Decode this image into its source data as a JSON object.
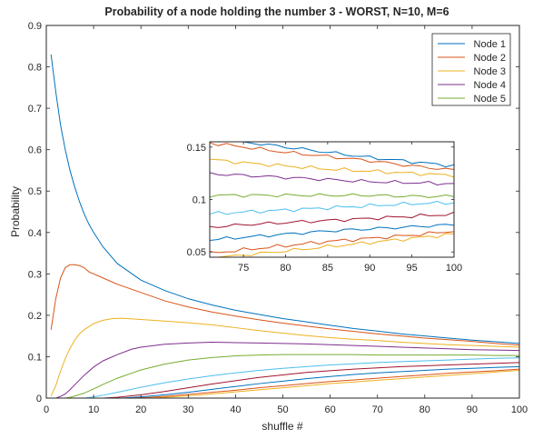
{
  "chart_data": {
    "type": "line",
    "title": "Probability of a node holding the number 3 - WORST, N=10, M=6",
    "xlabel": "shuffle #",
    "ylabel": "Probability",
    "xlim": [
      0,
      100
    ],
    "ylim": [
      0,
      0.9
    ],
    "xticks": [
      0,
      10,
      20,
      30,
      40,
      50,
      60,
      70,
      80,
      90,
      100
    ],
    "yticks": [
      0,
      0.1,
      0.2,
      0.3,
      0.4,
      0.5,
      0.6,
      0.7,
      0.8,
      0.9
    ],
    "grid": false,
    "legend_position": "top-right",
    "series": [
      {
        "name": "Node 1",
        "color": "#0072bd",
        "points": [
          [
            1,
            0.83
          ],
          [
            2,
            0.74
          ],
          [
            3,
            0.66
          ],
          [
            4,
            0.6
          ],
          [
            5,
            0.55
          ],
          [
            6,
            0.51
          ],
          [
            7,
            0.475
          ],
          [
            8,
            0.445
          ],
          [
            9,
            0.42
          ],
          [
            10,
            0.4
          ],
          [
            12,
            0.365
          ],
          [
            15,
            0.325
          ],
          [
            20,
            0.285
          ],
          [
            25,
            0.26
          ],
          [
            30,
            0.24
          ],
          [
            35,
            0.225
          ],
          [
            40,
            0.212
          ],
          [
            45,
            0.202
          ],
          [
            50,
            0.192
          ],
          [
            55,
            0.184
          ],
          [
            60,
            0.176
          ],
          [
            65,
            0.168
          ],
          [
            70,
            0.162
          ],
          [
            75,
            0.155
          ],
          [
            80,
            0.15
          ],
          [
            85,
            0.145
          ],
          [
            90,
            0.14
          ],
          [
            95,
            0.136
          ],
          [
            100,
            0.132
          ]
        ]
      },
      {
        "name": "Node 2",
        "color": "#d95319",
        "points": [
          [
            1,
            0.165
          ],
          [
            2,
            0.24
          ],
          [
            3,
            0.29
          ],
          [
            4,
            0.315
          ],
          [
            5,
            0.322
          ],
          [
            6,
            0.322
          ],
          [
            7,
            0.32
          ],
          [
            8,
            0.315
          ],
          [
            9,
            0.305
          ],
          [
            10,
            0.3
          ],
          [
            12,
            0.29
          ],
          [
            15,
            0.275
          ],
          [
            20,
            0.255
          ],
          [
            25,
            0.235
          ],
          [
            30,
            0.22
          ],
          [
            35,
            0.208
          ],
          [
            40,
            0.198
          ],
          [
            45,
            0.189
          ],
          [
            50,
            0.181
          ],
          [
            55,
            0.174
          ],
          [
            60,
            0.167
          ],
          [
            65,
            0.161
          ],
          [
            70,
            0.155
          ],
          [
            75,
            0.15
          ],
          [
            80,
            0.145
          ],
          [
            85,
            0.141
          ],
          [
            90,
            0.137
          ],
          [
            95,
            0.132
          ],
          [
            100,
            0.128
          ]
        ]
      },
      {
        "name": "Node 3",
        "color": "#edb120",
        "points": [
          [
            1,
            0.005
          ],
          [
            2,
            0.03
          ],
          [
            3,
            0.065
          ],
          [
            4,
            0.095
          ],
          [
            5,
            0.12
          ],
          [
            6,
            0.14
          ],
          [
            7,
            0.155
          ],
          [
            8,
            0.165
          ],
          [
            10,
            0.18
          ],
          [
            12,
            0.188
          ],
          [
            14,
            0.192
          ],
          [
            16,
            0.193
          ],
          [
            20,
            0.19
          ],
          [
            25,
            0.186
          ],
          [
            30,
            0.182
          ],
          [
            35,
            0.177
          ],
          [
            40,
            0.17
          ],
          [
            45,
            0.163
          ],
          [
            50,
            0.157
          ],
          [
            55,
            0.151
          ],
          [
            60,
            0.146
          ],
          [
            65,
            0.142
          ],
          [
            70,
            0.139
          ],
          [
            75,
            0.135
          ],
          [
            80,
            0.132
          ],
          [
            85,
            0.129
          ],
          [
            90,
            0.127
          ],
          [
            95,
            0.125
          ],
          [
            100,
            0.123
          ]
        ]
      },
      {
        "name": "Node 4",
        "color": "#7e2f8e",
        "points": [
          [
            2,
            0.0
          ],
          [
            3,
            0.004
          ],
          [
            4,
            0.01
          ],
          [
            5,
            0.02
          ],
          [
            6,
            0.032
          ],
          [
            8,
            0.055
          ],
          [
            10,
            0.075
          ],
          [
            12,
            0.09
          ],
          [
            15,
            0.105
          ],
          [
            18,
            0.118
          ],
          [
            20,
            0.123
          ],
          [
            25,
            0.13
          ],
          [
            30,
            0.133
          ],
          [
            35,
            0.135
          ],
          [
            40,
            0.134
          ],
          [
            45,
            0.133
          ],
          [
            50,
            0.132
          ],
          [
            55,
            0.131
          ],
          [
            60,
            0.129
          ],
          [
            65,
            0.127
          ],
          [
            70,
            0.125
          ],
          [
            75,
            0.123
          ],
          [
            80,
            0.121
          ],
          [
            85,
            0.119
          ],
          [
            90,
            0.117
          ],
          [
            95,
            0.116
          ],
          [
            100,
            0.115
          ]
        ]
      },
      {
        "name": "Node 5",
        "color": "#77ac30",
        "points": [
          [
            4,
            0.0
          ],
          [
            5,
            0.002
          ],
          [
            6,
            0.005
          ],
          [
            8,
            0.012
          ],
          [
            10,
            0.022
          ],
          [
            12,
            0.033
          ],
          [
            15,
            0.048
          ],
          [
            18,
            0.06
          ],
          [
            20,
            0.068
          ],
          [
            25,
            0.082
          ],
          [
            30,
            0.092
          ],
          [
            35,
            0.098
          ],
          [
            40,
            0.102
          ],
          [
            45,
            0.104
          ],
          [
            50,
            0.105
          ],
          [
            55,
            0.105
          ],
          [
            60,
            0.105
          ],
          [
            65,
            0.105
          ],
          [
            70,
            0.104
          ],
          [
            75,
            0.104
          ],
          [
            80,
            0.104
          ],
          [
            85,
            0.104
          ],
          [
            90,
            0.104
          ],
          [
            95,
            0.103
          ],
          [
            100,
            0.103
          ]
        ]
      },
      {
        "color": "#4dbeee",
        "points": [
          [
            8,
            0.0
          ],
          [
            10,
            0.003
          ],
          [
            12,
            0.007
          ],
          [
            15,
            0.014
          ],
          [
            20,
            0.026
          ],
          [
            25,
            0.037
          ],
          [
            30,
            0.046
          ],
          [
            35,
            0.054
          ],
          [
            40,
            0.061
          ],
          [
            45,
            0.067
          ],
          [
            50,
            0.072
          ],
          [
            55,
            0.076
          ],
          [
            60,
            0.08
          ],
          [
            65,
            0.083
          ],
          [
            70,
            0.086
          ],
          [
            75,
            0.088
          ],
          [
            80,
            0.09
          ],
          [
            85,
            0.092
          ],
          [
            90,
            0.094
          ],
          [
            95,
            0.096
          ],
          [
            100,
            0.097
          ]
        ]
      },
      {
        "color": "#a2142f",
        "points": [
          [
            12,
            0.0
          ],
          [
            15,
            0.002
          ],
          [
            20,
            0.008
          ],
          [
            25,
            0.016
          ],
          [
            30,
            0.025
          ],
          [
            35,
            0.034
          ],
          [
            40,
            0.042
          ],
          [
            45,
            0.05
          ],
          [
            50,
            0.056
          ],
          [
            55,
            0.062
          ],
          [
            60,
            0.066
          ],
          [
            65,
            0.07
          ],
          [
            70,
            0.073
          ],
          [
            75,
            0.076
          ],
          [
            80,
            0.078
          ],
          [
            85,
            0.08
          ],
          [
            90,
            0.082
          ],
          [
            95,
            0.084
          ],
          [
            100,
            0.086
          ]
        ]
      },
      {
        "color": "#0072bd",
        "points": [
          [
            16,
            0.0
          ],
          [
            20,
            0.003
          ],
          [
            25,
            0.008
          ],
          [
            30,
            0.014
          ],
          [
            35,
            0.021
          ],
          [
            40,
            0.028
          ],
          [
            45,
            0.035
          ],
          [
            50,
            0.041
          ],
          [
            55,
            0.047
          ],
          [
            60,
            0.052
          ],
          [
            65,
            0.057
          ],
          [
            70,
            0.061
          ],
          [
            75,
            0.064
          ],
          [
            80,
            0.067
          ],
          [
            85,
            0.07
          ],
          [
            90,
            0.072
          ],
          [
            95,
            0.074
          ],
          [
            100,
            0.076
          ]
        ]
      },
      {
        "color": "#d95319",
        "points": [
          [
            18,
            0.0
          ],
          [
            22,
            0.002
          ],
          [
            26,
            0.005
          ],
          [
            30,
            0.009
          ],
          [
            35,
            0.014
          ],
          [
            40,
            0.019
          ],
          [
            45,
            0.025
          ],
          [
            50,
            0.03
          ],
          [
            55,
            0.035
          ],
          [
            60,
            0.04
          ],
          [
            65,
            0.044
          ],
          [
            70,
            0.048
          ],
          [
            75,
            0.052
          ],
          [
            80,
            0.056
          ],
          [
            85,
            0.06
          ],
          [
            90,
            0.063
          ],
          [
            95,
            0.066
          ],
          [
            100,
            0.07
          ]
        ]
      },
      {
        "color": "#edb120",
        "points": [
          [
            20,
            0.0
          ],
          [
            24,
            0.001
          ],
          [
            28,
            0.004
          ],
          [
            32,
            0.007
          ],
          [
            36,
            0.011
          ],
          [
            40,
            0.015
          ],
          [
            45,
            0.02
          ],
          [
            50,
            0.025
          ],
          [
            55,
            0.03
          ],
          [
            60,
            0.035
          ],
          [
            65,
            0.039
          ],
          [
            70,
            0.043
          ],
          [
            75,
            0.047
          ],
          [
            80,
            0.051
          ],
          [
            85,
            0.055
          ],
          [
            90,
            0.059
          ],
          [
            95,
            0.063
          ],
          [
            100,
            0.067
          ]
        ]
      }
    ],
    "inset": {
      "xlim": [
        71,
        100
      ],
      "ylim": [
        0.045,
        0.155
      ],
      "xticks": [
        75,
        80,
        85,
        90,
        95,
        100
      ],
      "yticks": [
        0.05,
        0.1,
        0.15
      ],
      "ytick_labels": [
        "0.05",
        "0.1",
        "0.15"
      ]
    }
  }
}
